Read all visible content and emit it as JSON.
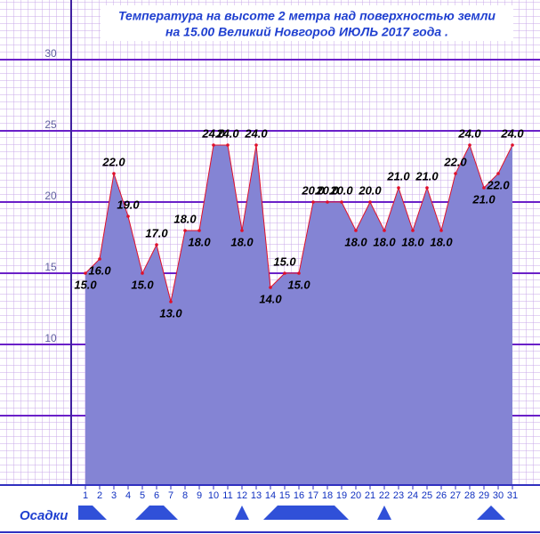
{
  "chart_data": {
    "type": "area",
    "title_lines": [
      "Температура  на  высоте 2 метра  над  поверхностью  земли",
      "на  15.00  Великий  Новгород  ИЮЛЬ  2017   года ."
    ],
    "categories": [
      "1",
      "2",
      "3",
      "4",
      "5",
      "6",
      "7",
      "8",
      "9",
      "10",
      "11",
      "12",
      "13",
      "14",
      "15",
      "16",
      "17",
      "18",
      "19",
      "20",
      "21",
      "22",
      "23",
      "24",
      "25",
      "26",
      "27",
      "28",
      "29",
      "30",
      "31"
    ],
    "values": [
      15,
      16,
      22,
      19,
      15,
      17,
      13,
      18,
      18,
      24,
      24,
      18,
      24,
      14,
      15,
      15,
      20,
      20,
      20,
      18,
      20,
      18,
      21,
      18,
      21,
      18,
      22,
      24,
      21,
      22,
      24
    ],
    "value_labels": [
      "15.0",
      "16.0",
      "22.0",
      "19.0",
      "15.0",
      "17.0",
      "13.0",
      "18.0",
      "18.0",
      "24.0",
      "24.0",
      "18.0",
      "24.0",
      "14.0",
      "15.0",
      "15.0",
      "20.0",
      "20.0",
      "20.0",
      "18.0",
      "20.0",
      "18.0",
      "21.0",
      "18.0",
      "21.0",
      "18.0",
      "22.0",
      "24.0",
      "21.0",
      "22.0",
      "24.0"
    ],
    "color": "#8484d4",
    "line_color": "#e0102a",
    "ylim": [
      0,
      34
    ],
    "yticks": [
      10,
      15,
      20,
      25,
      30
    ],
    "grid": true,
    "precip_label": "Осадки"
  }
}
